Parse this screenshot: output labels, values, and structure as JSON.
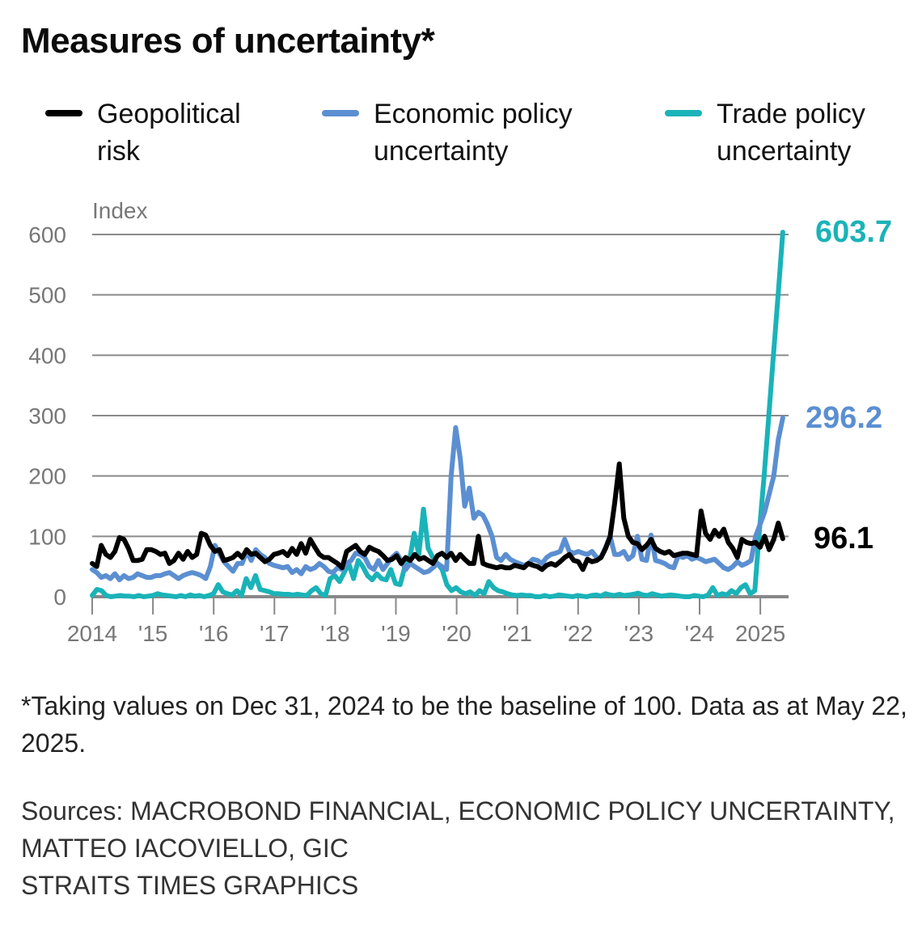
{
  "title": "Measures of uncertainty*",
  "legend": [
    {
      "label": "Geopolitical\nrisk",
      "color": "#000000"
    },
    {
      "label": "Economic policy\nuncertainty",
      "color": "#5b8fd1"
    },
    {
      "label": "Trade policy\nuncertainty",
      "color": "#1ab3b8"
    }
  ],
  "footnote": "*Taking values on Dec 31, 2024 to be the baseline of 100. Data as at May 22, 2025.",
  "sources": [
    "Sources: MACROBOND FINANCIAL, ECONOMIC POLICY UNCERTAINTY,",
    "MATTEO IACOVIELLO, GIC",
    "STRAITS TIMES GRAPHICS"
  ],
  "chart_data": {
    "type": "line",
    "title": "Measures of uncertainty*",
    "ylabel": "Index",
    "xlabel": "",
    "ylim": [
      0,
      600
    ],
    "yticks": [
      0,
      100,
      200,
      300,
      400,
      500,
      600
    ],
    "xlim": [
      2014.0,
      2025.45
    ],
    "xticks": [
      {
        "value": 2014,
        "label": "2014"
      },
      {
        "value": 2015,
        "label": "'15"
      },
      {
        "value": 2016,
        "label": "'16"
      },
      {
        "value": 2017,
        "label": "'17"
      },
      {
        "value": 2018,
        "label": "'18"
      },
      {
        "value": 2019,
        "label": "'19"
      },
      {
        "value": 2020,
        "label": "'20"
      },
      {
        "value": 2021,
        "label": "'21"
      },
      {
        "value": 2022,
        "label": "'22"
      },
      {
        "value": 2023,
        "label": "'23"
      },
      {
        "value": 2024,
        "label": "'24"
      },
      {
        "value": 2025,
        "label": "2025"
      }
    ],
    "grid": true,
    "legend_position": "top",
    "x_start": 2014.0,
    "x_step_months": 1,
    "series": [
      {
        "name": "Geopolitical risk",
        "color": "#000000",
        "end_label": "96.1",
        "values": [
          55,
          50,
          85,
          70,
          65,
          75,
          98,
          95,
          80,
          60,
          60,
          62,
          78,
          78,
          75,
          70,
          72,
          55,
          60,
          72,
          62,
          75,
          65,
          70,
          105,
          102,
          85,
          75,
          78,
          60,
          62,
          65,
          72,
          65,
          78,
          70,
          72,
          65,
          58,
          62,
          70,
          72,
          75,
          68,
          80,
          70,
          88,
          72,
          95,
          82,
          70,
          65,
          65,
          60,
          55,
          48,
          75,
          80,
          85,
          75,
          70,
          82,
          78,
          75,
          68,
          60,
          62,
          68,
          55,
          65,
          60,
          70,
          62,
          65,
          60,
          55,
          68,
          72,
          65,
          72,
          60,
          70,
          62,
          55,
          55,
          100,
          55,
          52,
          50,
          48,
          50,
          48,
          48,
          52,
          50,
          48,
          55,
          52,
          50,
          45,
          52,
          55,
          52,
          58,
          65,
          70,
          60,
          58,
          45,
          62,
          58,
          60,
          65,
          80,
          100,
          155,
          220,
          130,
          100,
          90,
          88,
          78,
          85,
          95,
          80,
          75,
          72,
          75,
          68,
          70,
          72,
          72,
          70,
          68,
          142,
          105,
          95
        ],
        "values_tail": [
          110,
          100,
          112,
          90,
          80,
          65,
          95,
          90,
          88,
          90,
          82,
          100,
          78,
          95,
          122,
          96.1
        ]
      },
      {
        "name": "Economic policy uncertainty",
        "color": "#5b8fd1",
        "end_label": "296.2",
        "values": [
          45,
          40,
          32,
          35,
          30,
          38,
          28,
          35,
          30,
          32,
          38,
          35,
          32,
          32,
          35,
          35,
          38,
          40,
          35,
          30,
          35,
          38,
          40,
          38,
          35,
          30,
          50,
          85,
          72,
          58,
          50,
          42,
          55,
          55,
          75,
          60,
          78,
          70,
          65,
          55,
          52,
          50,
          48,
          50,
          40,
          45,
          38,
          50,
          45,
          48,
          55,
          50,
          42,
          40,
          48,
          45,
          55,
          60,
          72,
          70,
          65,
          50,
          45,
          60,
          45,
          55,
          65,
          72,
          60,
          45,
          55,
          50,
          45,
          40,
          42,
          48,
          55,
          50,
          45,
          200,
          280,
          230,
          150,
          180,
          130,
          140,
          135,
          120,
          100,
          65,
          60,
          70,
          62,
          58,
          55,
          52,
          55,
          62,
          60,
          55,
          65,
          70,
          72,
          75,
          95,
          75,
          72,
          75,
          72,
          70,
          75,
          65,
          65,
          82,
          100,
          70,
          70,
          75,
          62,
          68,
          100,
          62,
          60,
          102,
          60,
          58,
          55,
          50,
          48,
          68,
          65,
          68,
          62,
          65,
          62,
          58,
          60
        ],
        "values_tail": [
          62,
          55,
          48,
          45,
          50,
          58,
          52,
          55,
          60,
          100,
          120,
          140,
          170,
          200,
          260,
          296.2
        ]
      },
      {
        "name": "Trade policy uncertainty",
        "color": "#1ab3b8",
        "end_label": "603.7",
        "values": [
          2,
          12,
          10,
          2,
          0,
          1,
          2,
          1,
          1,
          0,
          2,
          0,
          1,
          2,
          5,
          3,
          2,
          1,
          0,
          2,
          0,
          3,
          1,
          2,
          0,
          2,
          5,
          20,
          8,
          5,
          3,
          10,
          2,
          30,
          15,
          35,
          12,
          10,
          8,
          5,
          5,
          4,
          4,
          3,
          4,
          3,
          2,
          10,
          15,
          5,
          2,
          30,
          35,
          25,
          40,
          55,
          30,
          60,
          50,
          35,
          28,
          38,
          30,
          28,
          45,
          22,
          20,
          50,
          60,
          105,
          70,
          145,
          80,
          65,
          55,
          45,
          20,
          10,
          15,
          8,
          5,
          8,
          2,
          10,
          5,
          25,
          15,
          10,
          8,
          5,
          3,
          2,
          3,
          2,
          2,
          0,
          0,
          2,
          0,
          1,
          3,
          2,
          1,
          0,
          2,
          1,
          0,
          2,
          3,
          1,
          5,
          3,
          2,
          4,
          2,
          3,
          4,
          6,
          3,
          2,
          5,
          3,
          1,
          2,
          3,
          2,
          1,
          0,
          0,
          2,
          1,
          0,
          3,
          15,
          2,
          5,
          3
        ],
        "values_tail": [
          10,
          5,
          15,
          20,
          5,
          10,
          110,
          200,
          300,
          400,
          500,
          603.7
        ]
      }
    ],
    "end_labels": [
      {
        "series": "Trade policy uncertainty",
        "text": "603.7",
        "value": 603.7
      },
      {
        "series": "Economic policy uncertainty",
        "text": "296.2",
        "value": 296.2
      },
      {
        "series": "Geopolitical risk",
        "text": "96.1",
        "value": 96.1
      }
    ]
  }
}
